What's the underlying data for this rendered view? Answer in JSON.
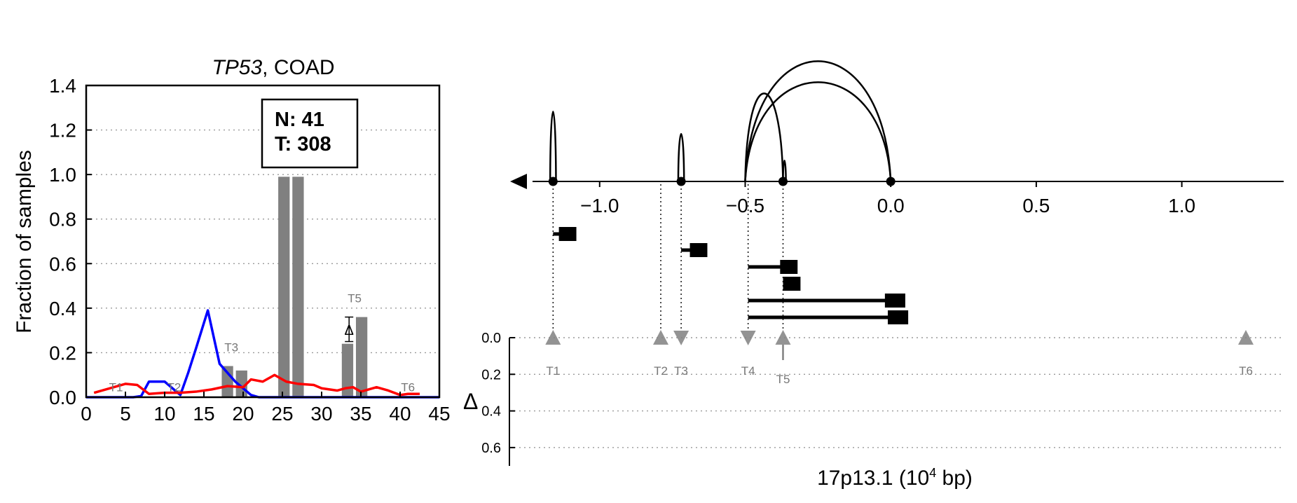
{
  "colors": {
    "bar": "#808080",
    "normal_line": "#0000ff",
    "tumor_line": "#ff0000",
    "marker": "#808080",
    "axis": "#000000",
    "grid": "#999999"
  },
  "chart_data": [
    {
      "type": "bar",
      "title_gene": "TP53",
      "title_rest": ", COAD",
      "xlabel": "",
      "ylabel": "Fraction of samples",
      "xlim": [
        0,
        45
      ],
      "ylim": [
        0,
        1.4
      ],
      "xticks": [
        0,
        5,
        10,
        15,
        20,
        25,
        30,
        35,
        40,
        45
      ],
      "yticks": [
        0.0,
        0.2,
        0.4,
        0.6,
        0.8,
        1.0,
        1.2,
        1.4
      ],
      "ytick_labels": [
        "0.0",
        "0.2",
        "0.4",
        "0.6",
        "0.8",
        "1.0",
        "1.2",
        "1.4"
      ],
      "grid": "y-dotted",
      "count_box": {
        "line1": "N: 41",
        "line2": "T: 308"
      },
      "bars": [
        {
          "x": 18,
          "value": 0.14
        },
        {
          "x": 19.8,
          "value": 0.12
        },
        {
          "x": 25.2,
          "value": 0.99
        },
        {
          "x": 27.0,
          "value": 0.99
        },
        {
          "x": 33.3,
          "value": 0.24
        },
        {
          "x": 35.1,
          "value": 0.36
        }
      ],
      "series": [
        {
          "color": "blue",
          "x": [
            0,
            6,
            7,
            8,
            10,
            11,
            12,
            13,
            14,
            15.5,
            17,
            18,
            19,
            20,
            21,
            22,
            45
          ],
          "values": [
            0,
            0,
            0.005,
            0.07,
            0.07,
            0.04,
            0.01,
            0.11,
            0.22,
            0.39,
            0.15,
            0.11,
            0.07,
            0.04,
            0.01,
            0,
            0
          ]
        },
        {
          "color": "red",
          "x": [
            1,
            3,
            5,
            6.5,
            8,
            10,
            12,
            14,
            16,
            18,
            20,
            21,
            22.5,
            24,
            25.5,
            27,
            29,
            30,
            32,
            33,
            34,
            35,
            37,
            38.5,
            40,
            41,
            42.5
          ],
          "values": [
            0.02,
            0.04,
            0.06,
            0.055,
            0.015,
            0.02,
            0.02,
            0.025,
            0.035,
            0.05,
            0.045,
            0.08,
            0.07,
            0.1,
            0.07,
            0.06,
            0.055,
            0.04,
            0.03,
            0.04,
            0.045,
            0.025,
            0.045,
            0.03,
            0.01,
            0.015,
            0.015
          ]
        }
      ],
      "tss_labels": [
        {
          "label": "T1",
          "x": 3.8,
          "y": 0.02
        },
        {
          "label": "T2",
          "x": 11.2,
          "y": 0.02
        },
        {
          "label": "T3",
          "x": 18.5,
          "y": 0.2
        },
        {
          "label": "T5",
          "x": 34.2,
          "y": 0.42
        },
        {
          "label": "T6",
          "x": 41.0,
          "y": 0.02
        }
      ],
      "delta_marker": {
        "label": "Δ",
        "x": 33.5,
        "y": 0.305,
        "err_low": 0.25,
        "err_high": 0.36
      }
    },
    {
      "type": "scatter",
      "description_xlabel_main": "17p13.1 (10",
      "description_xlabel_sup": "4",
      "description_xlabel_tail": " bp)",
      "xlim": [
        -1.31,
        1.35
      ],
      "xticks": [
        -1.0,
        -0.5,
        0.0,
        0.5,
        1.0
      ],
      "xtick_labels": [
        "−1.0",
        "−0.5",
        "0.0",
        "0.5",
        "1.0"
      ],
      "nodes": [
        -1.16,
        -0.72,
        -0.37,
        0.0
      ],
      "arcs": [
        {
          "start": -1.17,
          "end": -1.15,
          "height": 1.0
        },
        {
          "start": -0.73,
          "end": -0.71,
          "height": 0.68
        },
        {
          "start": -0.5,
          "end": -0.37,
          "height": 1.26
        },
        {
          "start": -0.5,
          "end": 0.0,
          "height": 1.72
        },
        {
          "start": -0.5,
          "end": 0.0,
          "height": 1.42
        },
        {
          "start": -0.37,
          "end": -0.36,
          "height": 0.3
        }
      ],
      "exon_tracks": [
        {
          "line_start": -1.16,
          "line_end": -1.12,
          "block_start": -1.14,
          "block_end": -1.08
        },
        {
          "line_start": -0.72,
          "line_end": -0.68,
          "block_start": -0.69,
          "block_end": -0.63
        },
        {
          "line_start": -0.49,
          "line_end": -0.35,
          "block_start": -0.38,
          "block_end": -0.32
        },
        {
          "line_start": -0.37,
          "line_end": -0.35,
          "block_start": -0.37,
          "block_end": -0.31
        },
        {
          "line_start": -0.49,
          "line_end": 0.01,
          "block_start": -0.02,
          "block_end": 0.05
        },
        {
          "line_start": -0.49,
          "line_end": 0.02,
          "block_start": -0.01,
          "block_end": 0.06
        }
      ],
      "delta_axis": {
        "label": "Δ",
        "ylim": [
          0,
          0.7
        ],
        "yticks": [
          0.0,
          0.2,
          0.4,
          0.6
        ],
        "ytick_labels": [
          "0.0",
          "0.2",
          "0.4",
          "0.6"
        ]
      },
      "tss_markers": [
        {
          "label": "T1",
          "x": -1.16,
          "direction": "up",
          "delta": 0.0
        },
        {
          "label": "T2",
          "x": -0.79,
          "direction": "up",
          "delta": 0.0
        },
        {
          "label": "T3",
          "x": -0.72,
          "direction": "down",
          "delta": 0.0
        },
        {
          "label": "T4",
          "x": -0.49,
          "direction": "down",
          "delta": 0.0
        },
        {
          "label": "T5",
          "x": -0.37,
          "direction": "up",
          "delta": 0.0,
          "highlight": true
        },
        {
          "label": "T6",
          "x": 1.22,
          "direction": "up",
          "delta": 0.0
        }
      ]
    }
  ]
}
